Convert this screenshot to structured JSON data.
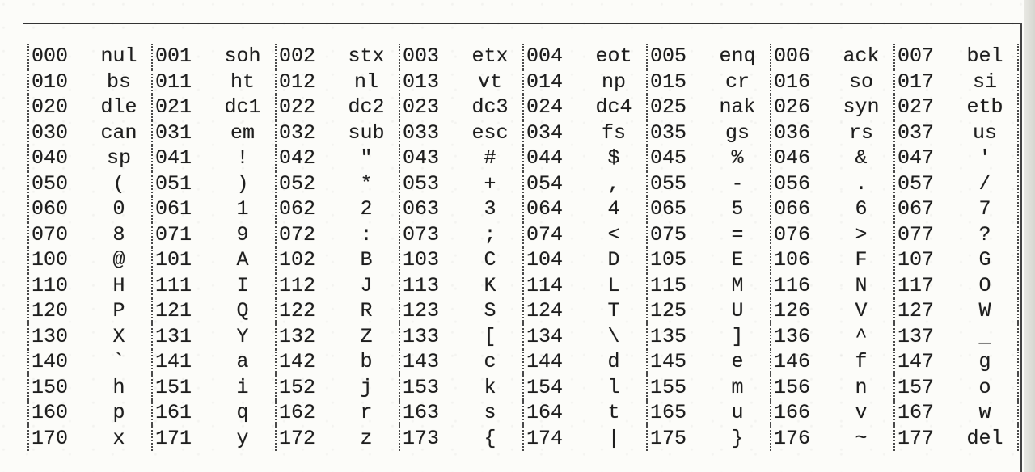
{
  "table": {
    "rows": [
      [
        [
          "000",
          "nul"
        ],
        [
          "001",
          "soh"
        ],
        [
          "002",
          "stx"
        ],
        [
          "003",
          "etx"
        ],
        [
          "004",
          "eot"
        ],
        [
          "005",
          "enq"
        ],
        [
          "006",
          "ack"
        ],
        [
          "007",
          "bel"
        ]
      ],
      [
        [
          "010",
          "bs"
        ],
        [
          "011",
          "ht"
        ],
        [
          "012",
          "nl"
        ],
        [
          "013",
          "vt"
        ],
        [
          "014",
          "np"
        ],
        [
          "015",
          "cr"
        ],
        [
          "016",
          "so"
        ],
        [
          "017",
          "si"
        ]
      ],
      [
        [
          "020",
          "dle"
        ],
        [
          "021",
          "dc1"
        ],
        [
          "022",
          "dc2"
        ],
        [
          "023",
          "dc3"
        ],
        [
          "024",
          "dc4"
        ],
        [
          "025",
          "nak"
        ],
        [
          "026",
          "syn"
        ],
        [
          "027",
          "etb"
        ]
      ],
      [
        [
          "030",
          "can"
        ],
        [
          "031",
          "em"
        ],
        [
          "032",
          "sub"
        ],
        [
          "033",
          "esc"
        ],
        [
          "034",
          "fs"
        ],
        [
          "035",
          "gs"
        ],
        [
          "036",
          "rs"
        ],
        [
          "037",
          "us"
        ]
      ],
      [
        [
          "040",
          "sp"
        ],
        [
          "041",
          "!"
        ],
        [
          "042",
          "\""
        ],
        [
          "043",
          "#"
        ],
        [
          "044",
          "$"
        ],
        [
          "045",
          "%"
        ],
        [
          "046",
          "&"
        ],
        [
          "047",
          "'"
        ]
      ],
      [
        [
          "050",
          "("
        ],
        [
          "051",
          ")"
        ],
        [
          "052",
          "*"
        ],
        [
          "053",
          "+"
        ],
        [
          "054",
          ","
        ],
        [
          "055",
          "-"
        ],
        [
          "056",
          "."
        ],
        [
          "057",
          "/"
        ]
      ],
      [
        [
          "060",
          "0"
        ],
        [
          "061",
          "1"
        ],
        [
          "062",
          "2"
        ],
        [
          "063",
          "3"
        ],
        [
          "064",
          "4"
        ],
        [
          "065",
          "5"
        ],
        [
          "066",
          "6"
        ],
        [
          "067",
          "7"
        ]
      ],
      [
        [
          "070",
          "8"
        ],
        [
          "071",
          "9"
        ],
        [
          "072",
          ":"
        ],
        [
          "073",
          ";"
        ],
        [
          "074",
          "<"
        ],
        [
          "075",
          "="
        ],
        [
          "076",
          ">"
        ],
        [
          "077",
          "?"
        ]
      ],
      [
        [
          "100",
          "@"
        ],
        [
          "101",
          "A"
        ],
        [
          "102",
          "B"
        ],
        [
          "103",
          "C"
        ],
        [
          "104",
          "D"
        ],
        [
          "105",
          "E"
        ],
        [
          "106",
          "F"
        ],
        [
          "107",
          "G"
        ]
      ],
      [
        [
          "110",
          "H"
        ],
        [
          "111",
          "I"
        ],
        [
          "112",
          "J"
        ],
        [
          "113",
          "K"
        ],
        [
          "114",
          "L"
        ],
        [
          "115",
          "M"
        ],
        [
          "116",
          "N"
        ],
        [
          "117",
          "O"
        ]
      ],
      [
        [
          "120",
          "P"
        ],
        [
          "121",
          "Q"
        ],
        [
          "122",
          "R"
        ],
        [
          "123",
          "S"
        ],
        [
          "124",
          "T"
        ],
        [
          "125",
          "U"
        ],
        [
          "126",
          "V"
        ],
        [
          "127",
          "W"
        ]
      ],
      [
        [
          "130",
          "X"
        ],
        [
          "131",
          "Y"
        ],
        [
          "132",
          "Z"
        ],
        [
          "133",
          "["
        ],
        [
          "134",
          "\\"
        ],
        [
          "135",
          "]"
        ],
        [
          "136",
          "^"
        ],
        [
          "137",
          "_"
        ]
      ],
      [
        [
          "140",
          "`"
        ],
        [
          "141",
          "a"
        ],
        [
          "142",
          "b"
        ],
        [
          "143",
          "c"
        ],
        [
          "144",
          "d"
        ],
        [
          "145",
          "e"
        ],
        [
          "146",
          "f"
        ],
        [
          "147",
          "g"
        ]
      ],
      [
        [
          "150",
          "h"
        ],
        [
          "151",
          "i"
        ],
        [
          "152",
          "j"
        ],
        [
          "153",
          "k"
        ],
        [
          "154",
          "l"
        ],
        [
          "155",
          "m"
        ],
        [
          "156",
          "n"
        ],
        [
          "157",
          "o"
        ]
      ],
      [
        [
          "160",
          "p"
        ],
        [
          "161",
          "q"
        ],
        [
          "162",
          "r"
        ],
        [
          "163",
          "s"
        ],
        [
          "164",
          "t"
        ],
        [
          "165",
          "u"
        ],
        [
          "166",
          "v"
        ],
        [
          "167",
          "w"
        ]
      ],
      [
        [
          "170",
          "x"
        ],
        [
          "171",
          "y"
        ],
        [
          "172",
          "z"
        ],
        [
          "173",
          "{"
        ],
        [
          "174",
          "|"
        ],
        [
          "175",
          "}"
        ],
        [
          "176",
          "~"
        ],
        [
          "177",
          "del"
        ]
      ]
    ]
  }
}
